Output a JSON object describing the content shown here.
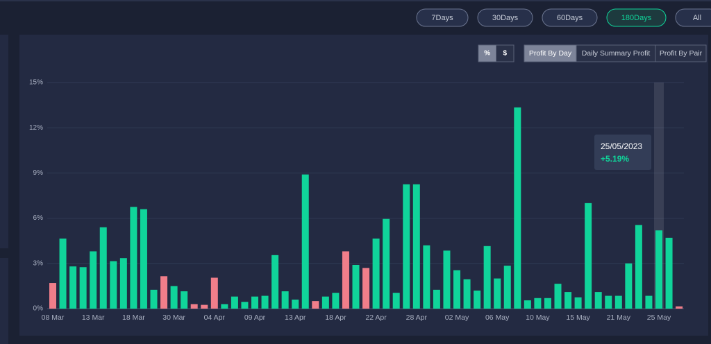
{
  "ranges": [
    {
      "label": "7Days"
    },
    {
      "label": "30Days"
    },
    {
      "label": "60Days"
    },
    {
      "label": "180Days",
      "active": true
    },
    {
      "label": "All"
    }
  ],
  "units": [
    {
      "label": "%",
      "active": true
    },
    {
      "label": "$"
    }
  ],
  "tabs": [
    {
      "label": "Profit By Day",
      "active": true
    },
    {
      "label": "Daily Summary Profit"
    },
    {
      "label": "Profit By Pair"
    }
  ],
  "chart_data": {
    "type": "bar",
    "categories": [
      "08 Mar",
      null,
      null,
      null,
      "13 Mar",
      null,
      null,
      null,
      "18 Mar",
      null,
      null,
      null,
      "30 Mar",
      null,
      null,
      null,
      "04 Apr",
      null,
      null,
      null,
      "09 Apr",
      null,
      null,
      null,
      "13 Apr",
      null,
      null,
      null,
      "18 Apr",
      null,
      null,
      null,
      "22 Apr",
      null,
      null,
      null,
      "28 Apr",
      null,
      null,
      null,
      "02 May",
      null,
      null,
      null,
      "06 May",
      null,
      null,
      null,
      "10 May",
      null,
      null,
      null,
      "15 May",
      null,
      null,
      null,
      "21 May",
      null,
      null,
      null,
      "25 May",
      null,
      null
    ],
    "values": [
      1.7,
      4.65,
      2.8,
      2.75,
      3.8,
      5.4,
      3.15,
      3.35,
      6.75,
      6.6,
      1.25,
      2.15,
      1.5,
      1.15,
      0.3,
      0.25,
      2.05,
      0.3,
      0.8,
      0.45,
      0.8,
      0.85,
      3.55,
      1.15,
      0.6,
      8.9,
      0.5,
      0.8,
      1.05,
      3.8,
      2.9,
      2.7,
      4.65,
      5.95,
      1.05,
      8.25,
      8.25,
      4.2,
      1.25,
      3.85,
      2.55,
      1.95,
      1.2,
      4.15,
      2.0,
      2.85,
      13.35,
      0.55,
      0.7,
      0.7,
      1.65,
      1.1,
      0.75,
      7.0,
      1.1,
      0.85,
      0.85,
      3.0,
      5.55,
      0.85,
      5.19,
      4.7,
      0.15
    ],
    "colors": [
      "#f07e8a",
      "#10d49a",
      "#10d49a",
      "#10d49a",
      "#10d49a",
      "#10d49a",
      "#10d49a",
      "#10d49a",
      "#10d49a",
      "#10d49a",
      "#10d49a",
      "#f07e8a",
      "#10d49a",
      "#10d49a",
      "#f07e8a",
      "#f07e8a",
      "#f07e8a",
      "#10d49a",
      "#10d49a",
      "#10d49a",
      "#10d49a",
      "#10d49a",
      "#10d49a",
      "#10d49a",
      "#10d49a",
      "#10d49a",
      "#f07e8a",
      "#10d49a",
      "#10d49a",
      "#f07e8a",
      "#10d49a",
      "#f07e8a",
      "#10d49a",
      "#10d49a",
      "#10d49a",
      "#10d49a",
      "#10d49a",
      "#10d49a",
      "#10d49a",
      "#10d49a",
      "#10d49a",
      "#10d49a",
      "#10d49a",
      "#10d49a",
      "#10d49a",
      "#10d49a",
      "#10d49a",
      "#10d49a",
      "#10d49a",
      "#10d49a",
      "#10d49a",
      "#10d49a",
      "#10d49a",
      "#10d49a",
      "#10d49a",
      "#10d49a",
      "#10d49a",
      "#10d49a",
      "#10d49a",
      "#10d49a",
      "#10d49a",
      "#10d49a",
      "#f07e8a"
    ],
    "value_labels": [
      null,
      null,
      null,
      null,
      null,
      null,
      null,
      null,
      null,
      null,
      null,
      null,
      null,
      null,
      null,
      null,
      null,
      null,
      null,
      null,
      null,
      null,
      null,
      null,
      null,
      null,
      null,
      null,
      null,
      null,
      null,
      null,
      null,
      null,
      null,
      null,
      null,
      null,
      null,
      null,
      null,
      null,
      null,
      null,
      null,
      null,
      null,
      null,
      null,
      null,
      null,
      null,
      null,
      null,
      null,
      null,
      null,
      null,
      null,
      null,
      "+5.19%",
      null,
      null
    ],
    "tooltip_title": "25/05/2023",
    "ylim": [
      0,
      15
    ],
    "yticks": [
      {
        "value": 0,
        "label": "0%"
      },
      {
        "value": 3,
        "label": "3%"
      },
      {
        "value": 6,
        "label": "6%"
      },
      {
        "value": 9,
        "label": "9%"
      },
      {
        "value": 12,
        "label": "12%"
      },
      {
        "value": 15,
        "label": "15%"
      }
    ],
    "grid": true
  }
}
